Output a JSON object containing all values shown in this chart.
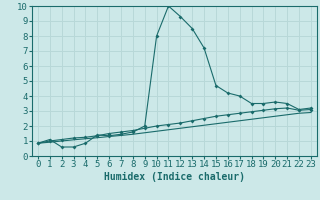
{
  "xlabel": "Humidex (Indice chaleur)",
  "background_color": "#cce8e8",
  "grid_color": "#b8d8d8",
  "line_color": "#1a6b6b",
  "xlim": [
    -0.5,
    23.5
  ],
  "ylim": [
    0,
    10
  ],
  "x_ticks": [
    0,
    1,
    2,
    3,
    4,
    5,
    6,
    7,
    8,
    9,
    10,
    11,
    12,
    13,
    14,
    15,
    16,
    17,
    18,
    19,
    20,
    21,
    22,
    23
  ],
  "y_ticks": [
    0,
    1,
    2,
    3,
    4,
    5,
    6,
    7,
    8,
    9,
    10
  ],
  "series1_x": [
    0,
    1,
    2,
    3,
    4,
    5,
    6,
    7,
    8,
    9,
    10,
    11,
    12,
    13,
    14,
    15,
    16,
    17,
    18,
    19,
    20,
    21,
    22,
    23
  ],
  "series1_y": [
    0.85,
    1.1,
    0.6,
    0.6,
    0.85,
    1.4,
    1.35,
    1.45,
    1.6,
    2.0,
    8.0,
    10.0,
    9.3,
    8.5,
    7.2,
    4.7,
    4.2,
    4.0,
    3.5,
    3.5,
    3.6,
    3.5,
    3.1,
    3.2
  ],
  "series2_x": [
    0,
    1,
    2,
    3,
    4,
    5,
    6,
    7,
    8,
    9,
    10,
    11,
    12,
    13,
    14,
    15,
    16,
    17,
    18,
    19,
    20,
    21,
    22,
    23
  ],
  "series2_y": [
    0.85,
    1.0,
    1.1,
    1.2,
    1.25,
    1.35,
    1.5,
    1.6,
    1.7,
    1.85,
    2.0,
    2.1,
    2.2,
    2.35,
    2.5,
    2.65,
    2.75,
    2.85,
    2.95,
    3.05,
    3.15,
    3.2,
    3.05,
    3.1
  ],
  "series3_x": [
    0,
    1,
    2,
    3,
    4,
    5,
    6,
    7,
    8,
    9,
    10,
    11,
    12,
    13,
    14,
    15,
    16,
    17,
    18,
    19,
    20,
    21,
    22,
    23
  ],
  "series3_y": [
    0.85,
    0.92,
    1.0,
    1.08,
    1.15,
    1.22,
    1.3,
    1.37,
    1.45,
    1.55,
    1.65,
    1.75,
    1.85,
    1.95,
    2.05,
    2.15,
    2.25,
    2.35,
    2.45,
    2.55,
    2.65,
    2.75,
    2.85,
    2.9
  ],
  "xlabel_fontsize": 7,
  "tick_fontsize": 6.5
}
